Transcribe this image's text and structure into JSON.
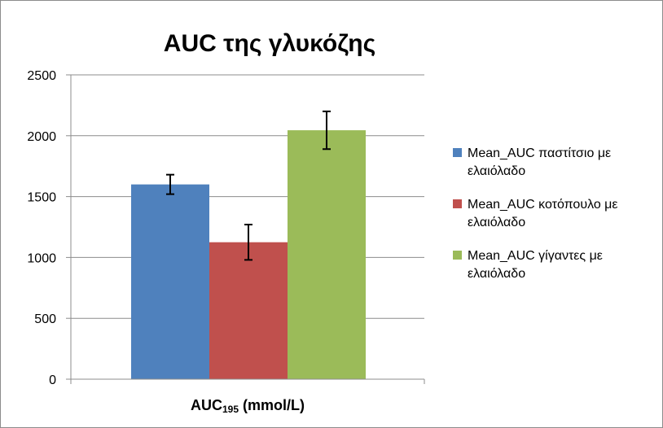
{
  "chart_data": {
    "type": "bar",
    "title": "AUC της γλυκόζης",
    "xlabel": {
      "main": "AUC",
      "sub": "195",
      "rest": " (mmol/L)"
    },
    "ylabel": "",
    "ylim": [
      0,
      2500
    ],
    "yticks": [
      0,
      500,
      1000,
      1500,
      2000,
      2500
    ],
    "grid": true,
    "legend_position": "right",
    "series": [
      {
        "name": "Mean_AUC παστίτσιο με ελαιόλαδο",
        "legend_lines": [
          "Mean_AUC παστίτσιο με",
          "ελαιόλαδο"
        ],
        "value": 1600,
        "error": 80,
        "color": "#4f81bd"
      },
      {
        "name": "Mean_AUC κοτόπουλο με ελαιόλαδο",
        "legend_lines": [
          "Mean_AUC κοτόπουλο με",
          "ελαιόλαδο"
        ],
        "value": 1125,
        "error": 145,
        "color": "#c0504d"
      },
      {
        "name": "Mean_AUC γίγαντες με ελαιόλαδο",
        "legend_lines": [
          "Mean_AUC γίγαντες με",
          "ελαιόλαδο"
        ],
        "value": 2045,
        "error": 155,
        "color": "#9bbb59"
      }
    ]
  }
}
